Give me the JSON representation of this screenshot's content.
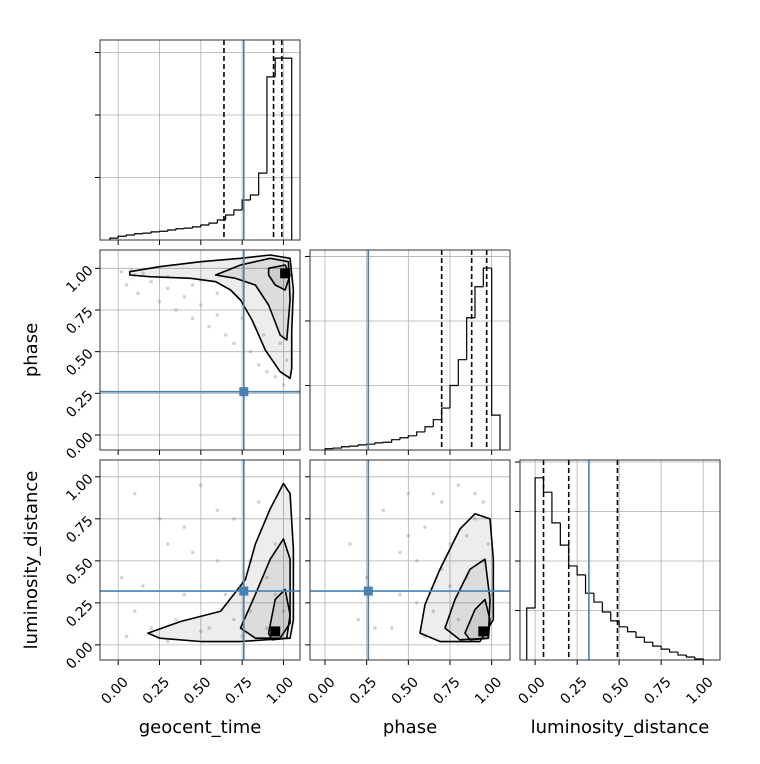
{
  "chart_data": {
    "type": "corner",
    "grid": true,
    "truth_color": "#4682b4",
    "line_color": "#000000",
    "point_color": "#808080",
    "ticks": [
      {
        "value": 0,
        "label": "0.00"
      },
      {
        "value": 0.25,
        "label": "0.25"
      },
      {
        "value": 0.5,
        "label": "0.50"
      },
      {
        "value": 0.75,
        "label": "0.75"
      },
      {
        "value": 1,
        "label": "1.00"
      }
    ],
    "parameters": [
      {
        "name": "geocent_time",
        "lim": [
          -0.11,
          1.1
        ],
        "truth": 0.76,
        "quantiles": [
          0.64,
          0.94,
          0.99
        ]
      },
      {
        "name": "phase",
        "lim": [
          -0.09,
          1.11
        ],
        "truth": 0.26,
        "quantiles": [
          0.7,
          0.88,
          0.97
        ]
      },
      {
        "name": "luminosity_distance",
        "lim": [
          -0.09,
          1.1
        ],
        "truth": 0.32,
        "quantiles": [
          0.05,
          0.2,
          0.49
        ]
      }
    ],
    "histograms": [
      {
        "bins": [
          -0.05,
          0,
          0.05,
          0.1,
          0.15,
          0.2,
          0.25,
          0.3,
          0.35,
          0.4,
          0.45,
          0.5,
          0.55,
          0.6,
          0.65,
          0.7,
          0.75,
          0.8,
          0.85,
          0.9,
          0.95,
          1.0,
          1.05
        ],
        "counts": [
          0.03,
          0.06,
          0.08,
          0.1,
          0.11,
          0.13,
          0.14,
          0.16,
          0.18,
          0.19,
          0.21,
          0.24,
          0.27,
          0.32,
          0.4,
          0.48,
          0.64,
          0.72,
          1.07,
          2.61,
          2.91,
          2.91
        ],
        "ylim": [
          0,
          3.2
        ],
        "yticks": [
          1,
          2,
          3
        ]
      },
      {
        "bins": [
          0,
          0.05,
          0.1,
          0.15,
          0.2,
          0.25,
          0.3,
          0.35,
          0.4,
          0.45,
          0.5,
          0.55,
          0.6,
          0.65,
          0.7,
          0.75,
          0.8,
          0.85,
          0.9,
          0.95,
          1.0,
          1.05
        ],
        "counts": [
          0.02,
          0.03,
          0.05,
          0.06,
          0.08,
          0.09,
          0.11,
          0.12,
          0.16,
          0.19,
          0.22,
          0.28,
          0.36,
          0.47,
          0.65,
          1.0,
          1.4,
          2.05,
          2.53,
          2.82,
          0.54
        ],
        "ylim": [
          0,
          3.1
        ],
        "yticks": [
          1,
          2,
          3
        ]
      },
      {
        "bins": [
          -0.05,
          0,
          0.05,
          0.1,
          0.15,
          0.2,
          0.25,
          0.3,
          0.35,
          0.4,
          0.45,
          0.5,
          0.55,
          0.6,
          0.65,
          0.7,
          0.75,
          0.8,
          0.85,
          0.9,
          0.95,
          1.0
        ],
        "counts": [
          1.05,
          3.68,
          3.39,
          2.77,
          2.32,
          1.9,
          1.72,
          1.35,
          1.17,
          0.97,
          0.79,
          0.67,
          0.57,
          0.46,
          0.36,
          0.28,
          0.22,
          0.16,
          0.1,
          0.06,
          0.02
        ],
        "ylim": [
          0,
          4.04
        ],
        "yticks": [
          1,
          2,
          3,
          4
        ]
      }
    ],
    "pairs": [
      {
        "points": {
          "x": [
            0.02,
            0.05,
            0.1,
            0.12,
            0.2,
            0.25,
            0.3,
            0.35,
            0.4,
            0.45,
            0.5,
            0.55,
            0.6,
            0.65,
            0.7,
            0.8,
            0.85,
            0.9,
            0.95,
            1.0,
            0.15,
            0.3,
            0.45,
            0.6,
            0.75,
            0.88,
            0.98,
            1.02,
            0.08,
            0.5
          ],
          "y": [
            0.98,
            0.9,
            0.96,
            0.85,
            0.92,
            0.8,
            0.88,
            0.75,
            0.83,
            0.7,
            0.78,
            0.65,
            0.72,
            0.6,
            0.55,
            0.5,
            0.42,
            0.38,
            0.35,
            0.3,
            0.97,
            0.95,
            0.9,
            0.85,
            0.7,
            0.6,
            0.55,
            0.45,
            0.99,
            0.93
          ]
        },
        "contours": [
          {
            "x": [
              0.07,
              0.25,
              0.5,
              0.74,
              0.92,
              1.04,
              1.06,
              1.05,
              1.05,
              1.04,
              0.98,
              0.89,
              0.81,
              0.74,
              0.68,
              0.59,
              0.44,
              0.19,
              0.07
            ],
            "y": [
              0.98,
              1.01,
              1.04,
              1.06,
              1.08,
              1.06,
              0.87,
              0.63,
              0.4,
              0.34,
              0.38,
              0.51,
              0.69,
              0.81,
              0.87,
              0.92,
              0.94,
              0.95,
              0.96
            ]
          },
          {
            "x": [
              0.59,
              0.74,
              0.92,
              1.03,
              1.04,
              1.02,
              0.98,
              0.91,
              0.83,
              0.71
            ],
            "y": [
              0.96,
              1.02,
              1.06,
              1.04,
              0.81,
              0.57,
              0.6,
              0.78,
              0.9,
              0.94
            ]
          },
          {
            "x": [
              0.91,
              1.01,
              1.04,
              1.01,
              0.95,
              0.91
            ],
            "y": [
              1.0,
              1.02,
              0.96,
              0.87,
              0.9,
              0.96
            ]
          }
        ],
        "peak": [
          1.01,
          0.97
        ]
      },
      {
        "points": {
          "x": [
            0.05,
            0.1,
            0.2,
            0.3,
            0.4,
            0.5,
            0.6,
            0.7,
            0.8,
            0.9,
            0.15,
            0.35,
            0.55,
            0.75,
            0.95,
            0.25,
            0.45,
            0.65,
            0.85,
            1.0,
            0.02,
            0.3,
            0.6,
            0.9,
            0.5,
            0.7,
            0.8,
            0.95,
            0.4,
            0.1
          ],
          "y": [
            0.05,
            0.9,
            0.1,
            0.6,
            0.3,
            0.95,
            0.5,
            0.75,
            0.2,
            0.4,
            0.35,
            0.15,
            0.1,
            0.05,
            0.6,
            0.75,
            0.55,
            0.3,
            0.85,
            0.2,
            0.4,
            0.02,
            0.8,
            0.1,
            0.08,
            0.15,
            0.5,
            0.3,
            0.7,
            0.2
          ]
        },
        "contours": [
          {
            "x": [
              0.18,
              0.38,
              0.62,
              0.77,
              0.83,
              0.92,
              1.0,
              1.04,
              1.06,
              1.06,
              1.04,
              0.74,
              0.5,
              0.25
            ],
            "y": [
              0.07,
              0.14,
              0.2,
              0.39,
              0.6,
              0.81,
              0.96,
              0.9,
              0.57,
              0.15,
              0.04,
              0.02,
              0.02,
              0.04
            ]
          },
          {
            "x": [
              0.74,
              0.83,
              0.92,
              1.0,
              1.04,
              1.04,
              0.98,
              0.83
            ],
            "y": [
              0.1,
              0.3,
              0.51,
              0.63,
              0.51,
              0.13,
              0.04,
              0.04
            ]
          },
          {
            "x": [
              0.91,
              0.95,
              1.01,
              1.04,
              1.02,
              0.93
            ],
            "y": [
              0.07,
              0.27,
              0.33,
              0.18,
              0.04,
              0.03
            ]
          }
        ],
        "peak": [
          0.95,
          0.08
        ]
      },
      {
        "points": {
          "x": [
            0.15,
            0.25,
            0.35,
            0.45,
            0.5,
            0.55,
            0.6,
            0.65,
            0.7,
            0.75,
            0.8,
            0.85,
            0.9,
            0.95,
            1.0,
            0.4,
            0.6,
            0.7,
            0.8,
            0.9,
            0.5,
            0.3,
            0.65,
            0.85,
            0.95,
            0.55,
            0.75,
            0.45,
            0.2,
            0.98
          ],
          "y": [
            0.6,
            0.4,
            0.8,
            0.3,
            0.9,
            0.5,
            0.7,
            0.2,
            0.85,
            0.6,
            0.95,
            0.4,
            0.75,
            0.5,
            0.3,
            0.1,
            0.05,
            0.45,
            0.15,
            0.9,
            0.65,
            0.1,
            0.9,
            0.65,
            0.85,
            0.25,
            0.35,
            0.55,
            0.15,
            0.6
          ]
        },
        "contours": [
          {
            "x": [
              0.57,
              0.6,
              0.69,
              0.81,
              0.9,
              0.99,
              1.01,
              1.01,
              0.93,
              0.69
            ],
            "y": [
              0.07,
              0.24,
              0.45,
              0.69,
              0.78,
              0.75,
              0.51,
              0.15,
              0.02,
              0.02
            ]
          },
          {
            "x": [
              0.72,
              0.78,
              0.87,
              0.96,
              0.99,
              0.98,
              0.81
            ],
            "y": [
              0.1,
              0.27,
              0.45,
              0.51,
              0.27,
              0.04,
              0.03
            ]
          },
          {
            "x": [
              0.84,
              0.9,
              0.96,
              0.99,
              0.98,
              0.87
            ],
            "y": [
              0.07,
              0.21,
              0.27,
              0.15,
              0.04,
              0.03
            ]
          }
        ],
        "peak": [
          0.95,
          0.08
        ]
      }
    ]
  }
}
